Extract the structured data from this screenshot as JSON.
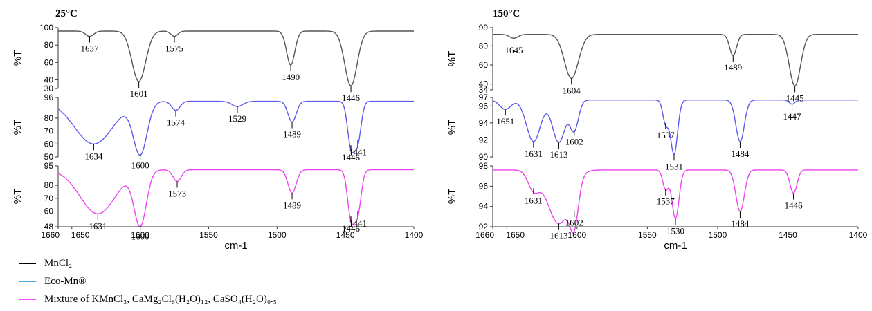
{
  "chart_data": [
    {
      "type": "line",
      "title": "25°C",
      "xlabel": "cm-1",
      "xlim": [
        1660,
        1400
      ],
      "x_ticks": [
        "1660",
        "1650",
        "1600",
        "1550",
        "1500",
        "1450",
        "1400"
      ],
      "panels": [
        {
          "series": "MnCl2",
          "color": "#555555",
          "ylabel": "%T",
          "ylim": [
            30,
            100
          ],
          "y_ticks": [
            "100",
            "80",
            "60",
            "40",
            "30"
          ],
          "baseline": 96,
          "peaks": [
            {
              "x": 1637,
              "y": 90,
              "w": 3,
              "label": "1637"
            },
            {
              "x": 1601,
              "y": 38,
              "w": 5,
              "label": "1601"
            },
            {
              "x": 1575,
              "y": 90,
              "w": 2.5,
              "label": "1575"
            },
            {
              "x": 1490,
              "y": 57,
              "w": 3,
              "label": "1490"
            },
            {
              "x": 1446,
              "y": 33,
              "w": 4.5,
              "label": "1446"
            }
          ]
        },
        {
          "series": "Eco-Mn®",
          "color": "#5a5aee",
          "ylabel": "%T",
          "ylim": [
            50,
            96
          ],
          "y_ticks": [
            "96",
            "80",
            "70",
            "60",
            "50"
          ],
          "baseline": 93,
          "peaks": [
            {
              "x": 1634,
              "y": 60,
              "w": 14,
              "label": "1634"
            },
            {
              "x": 1600,
              "y": 53,
              "w": 5,
              "label": "1600"
            },
            {
              "x": 1574,
              "y": 86,
              "w": 3,
              "label": "1574"
            },
            {
              "x": 1529,
              "y": 89,
              "w": 4,
              "label": "1529"
            },
            {
              "x": 1489,
              "y": 77,
              "w": 3,
              "label": "1489"
            },
            {
              "x": 1446,
              "y": 59,
              "w": 2.5,
              "label": "1446"
            },
            {
              "x": 1441,
              "y": 63,
              "w": 2.5,
              "label": "1441"
            }
          ]
        },
        {
          "series": "Mixture of KMnCl3, CaMg2Cl6(H2O)12, CaSO4(H2O)0.5",
          "color": "#ee44ee",
          "ylabel": "%T",
          "ylim": [
            48,
            95
          ],
          "y_ticks": [
            "95",
            "80",
            "70",
            "60",
            "48"
          ],
          "baseline": 92,
          "peaks": [
            {
              "x": 1631,
              "y": 58,
              "w": 13,
              "label": "1631"
            },
            {
              "x": 1600,
              "y": 50,
              "w": 4.5,
              "label": "1600"
            },
            {
              "x": 1573,
              "y": 83,
              "w": 3,
              "label": "1573"
            },
            {
              "x": 1489,
              "y": 74,
              "w": 3,
              "label": "1489"
            },
            {
              "x": 1446,
              "y": 56,
              "w": 2.5,
              "label": "1446"
            },
            {
              "x": 1441,
              "y": 60,
              "w": 2.5,
              "label": "1441"
            }
          ]
        }
      ]
    },
    {
      "type": "line",
      "title": "150°C",
      "xlabel": "cm-1",
      "xlim": [
        1660,
        1400
      ],
      "x_ticks": [
        "1660",
        "1650",
        "1600",
        "1550",
        "1500",
        "1450",
        "1400"
      ],
      "panels": [
        {
          "series": "MnCl2",
          "color": "#555555",
          "ylabel": "%T",
          "ylim": [
            34,
            99
          ],
          "y_ticks": [
            "99",
            "80",
            "60",
            "40",
            "34"
          ],
          "baseline": 92,
          "peaks": [
            {
              "x": 1645,
              "y": 88,
              "w": 3,
              "label": "1645"
            },
            {
              "x": 1604,
              "y": 46,
              "w": 5,
              "label": "1604"
            },
            {
              "x": 1489,
              "y": 70,
              "w": 2.5,
              "label": "1489"
            },
            {
              "x": 1445,
              "y": 38,
              "w": 4,
              "label": "1445"
            }
          ]
        },
        {
          "series": "Eco-Mn®",
          "color": "#5a5aee",
          "ylabel": "%T",
          "ylim": [
            90,
            97
          ],
          "y_ticks": [
            "97",
            "96",
            "94",
            "92",
            "90"
          ],
          "baseline": 96.7,
          "peaks": [
            {
              "x": 1651,
              "y": 95.6,
              "w": 4,
              "label": "1651"
            },
            {
              "x": 1631,
              "y": 91.8,
              "w": 5,
              "label": "1631"
            },
            {
              "x": 1613,
              "y": 91.7,
              "w": 4.5,
              "label": "1613"
            },
            {
              "x": 1602,
              "y": 93.2,
              "w": 3,
              "label": "1602"
            },
            {
              "x": 1537,
              "y": 94.0,
              "w": 2,
              "label": "1537"
            },
            {
              "x": 1531,
              "y": 90.3,
              "w": 2.5,
              "label": "1531"
            },
            {
              "x": 1484,
              "y": 91.8,
              "w": 3,
              "label": "1484"
            },
            {
              "x": 1447,
              "y": 96.2,
              "w": 2,
              "label": "1447"
            }
          ]
        },
        {
          "series": "Mixture of KMnCl3, CaMg2Cl6(H2O)12, CaSO4(H2O)0.5",
          "color": "#ee44ee",
          "ylabel": "%T",
          "ylim": [
            92,
            98
          ],
          "y_ticks": [
            "98",
            "96",
            "94",
            "92"
          ],
          "baseline": 97.6,
          "peaks": [
            {
              "x": 1631,
              "y": 95.8,
              "w": 4,
              "label": "1631"
            },
            {
              "x": 1613,
              "y": 92.3,
              "w": 8,
              "label": "1613"
            },
            {
              "x": 1602,
              "y": 93.6,
              "w": 3,
              "label": "1602"
            },
            {
              "x": 1537,
              "y": 95.7,
              "w": 2,
              "label": "1537"
            },
            {
              "x": 1530,
              "y": 92.8,
              "w": 2.5,
              "label": "1530"
            },
            {
              "x": 1484,
              "y": 93.5,
              "w": 3,
              "label": "1484"
            },
            {
              "x": 1446,
              "y": 95.3,
              "w": 2.5,
              "label": "1446"
            }
          ]
        }
      ]
    }
  ],
  "legend": {
    "items": [
      {
        "label": "MnCl₂",
        "color": "#000000"
      },
      {
        "label": "Eco-Mn®",
        "color": "#4aa3df"
      },
      {
        "label": "Mixture of KMnCl₃, CaMg₂Cl₆(H₂O)₁₂, CaSO₄(H₂O)₀.₅",
        "color": "#ff44ff"
      }
    ]
  }
}
